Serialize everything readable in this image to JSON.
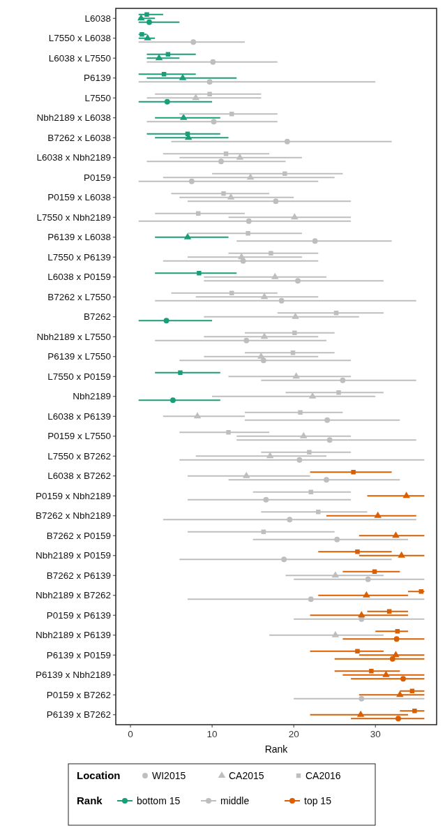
{
  "chart_data": {
    "type": "scatter",
    "orientation": "horizontal",
    "xlabel": "Rank",
    "xlim": [
      -1.8,
      37.5
    ],
    "xticks": [
      0,
      10,
      20,
      30
    ],
    "grid": false,
    "legend": "bottom",
    "legend_title": "Location",
    "annotations": [
      "Rank",
      "bottom 15",
      "middle",
      "top 15"
    ],
    "categories": [
      "L6038",
      "L7550 x L6038",
      "L6038 x L7550",
      "P6139",
      "L7550",
      "Nbh2189 x L6038",
      "B7262 x L6038",
      "L6038 x Nbh2189",
      "P0159",
      "P0159 x L6038",
      "L7550 x Nbh2189",
      "P6139 x L6038",
      "L7550 x P6139",
      "L6038 x P0159",
      "B7262 x L7550",
      "B7262",
      "Nbh2189 x L7550",
      "P6139 x L7550",
      "L7550 x P0159",
      "Nbh2189",
      "L6038 x P6139",
      "P0159 x L7550",
      "L7550 x B7262",
      "L6038 x B7262",
      "P0159 x Nbh2189",
      "B7262 x Nbh2189",
      "B7262 x P0159",
      "Nbh2189 x P0159",
      "B7262 x P6139",
      "Nbh2189 x B7262",
      "P0159 x P6139",
      "Nbh2189 x P6139",
      "P6139 x P0159",
      "P6139 x Nbh2189",
      "P0159 x B7262",
      "P6139 x B7262"
    ],
    "series": [
      {
        "name": "WI2015",
        "marker": "circle",
        "values": [
          2.3,
          7.7,
          10.1,
          9.7,
          4.5,
          10.2,
          19.2,
          11.1,
          7.5,
          17.8,
          14.5,
          22.6,
          13.8,
          20.5,
          18.5,
          4.4,
          14.2,
          16.3,
          26.0,
          5.2,
          24.1,
          24.4,
          20.7,
          24.0,
          16.6,
          19.5,
          25.3,
          18.8,
          29.1,
          22.1,
          28.3,
          32.6,
          32.1,
          33.4,
          28.3,
          32.8
        ],
        "errors": [
          [
            1,
            6
          ],
          [
            1,
            14
          ],
          [
            2,
            18
          ],
          [
            1,
            30
          ],
          [
            1,
            10
          ],
          [
            2,
            18
          ],
          [
            5,
            32
          ],
          [
            2,
            19
          ],
          [
            1,
            23
          ],
          [
            7,
            27
          ],
          [
            1,
            27
          ],
          [
            13,
            32
          ],
          [
            4,
            23
          ],
          [
            9,
            31
          ],
          [
            3,
            35
          ],
          [
            1,
            10
          ],
          [
            3,
            24
          ],
          [
            6,
            27
          ],
          [
            16,
            35
          ],
          [
            1,
            11
          ],
          [
            14,
            33
          ],
          [
            13,
            35
          ],
          [
            6,
            36
          ],
          [
            12,
            33
          ],
          [
            7,
            27
          ],
          [
            4,
            35
          ],
          [
            15,
            34
          ],
          [
            6,
            32
          ],
          [
            20,
            36
          ],
          [
            7,
            36
          ],
          [
            20,
            36
          ],
          [
            26,
            36
          ],
          [
            25,
            36
          ],
          [
            27,
            36
          ],
          [
            20,
            36
          ],
          [
            27,
            36
          ]
        ],
        "colors": [
          "#1b9e77",
          "#bebebe",
          "#bebebe",
          "#bebebe",
          "#1b9e77",
          "#bebebe",
          "#bebebe",
          "#bebebe",
          "#bebebe",
          "#bebebe",
          "#bebebe",
          "#bebebe",
          "#bebebe",
          "#bebebe",
          "#bebebe",
          "#1b9e77",
          "#bebebe",
          "#bebebe",
          "#bebebe",
          "#1b9e77",
          "#bebebe",
          "#bebebe",
          "#bebebe",
          "#bebebe",
          "#bebebe",
          "#bebebe",
          "#bebebe",
          "#bebebe",
          "#bebebe",
          "#bebebe",
          "#bebebe",
          "#d95f02",
          "#d95f02",
          "#d95f02",
          "#bebebe",
          "#d95f02"
        ]
      },
      {
        "name": "CA2015",
        "marker": "triangle",
        "values": [
          1.3,
          2.1,
          3.5,
          6.4,
          8.0,
          6.5,
          7.1,
          13.4,
          14.7,
          12.3,
          20.1,
          7.0,
          13.6,
          17.7,
          16.4,
          20.2,
          16.4,
          16.0,
          20.3,
          22.3,
          8.2,
          21.2,
          17.1,
          14.2,
          33.8,
          30.3,
          32.5,
          33.2,
          25.1,
          28.9,
          28.3,
          25.1,
          32.5,
          31.3,
          33.0,
          28.2
        ],
        "errors": [
          [
            1,
            3
          ],
          [
            1,
            3
          ],
          [
            2,
            6
          ],
          [
            2,
            13
          ],
          [
            2,
            16
          ],
          [
            3,
            11
          ],
          [
            3,
            12
          ],
          [
            6,
            21
          ],
          [
            4,
            25
          ],
          [
            6,
            20
          ],
          [
            12,
            27
          ],
          [
            3,
            12
          ],
          [
            7,
            21
          ],
          [
            9,
            24
          ],
          [
            8,
            23
          ],
          [
            9,
            28
          ],
          [
            9,
            23
          ],
          [
            9,
            23
          ],
          [
            12,
            27
          ],
          [
            10,
            30
          ],
          [
            4,
            14
          ],
          [
            13,
            27
          ],
          [
            8,
            24
          ],
          [
            7,
            22
          ],
          [
            29,
            36
          ],
          [
            24,
            35
          ],
          [
            28,
            36
          ],
          [
            28,
            36
          ],
          [
            19,
            31
          ],
          [
            23,
            34
          ],
          [
            22,
            34
          ],
          [
            17,
            31
          ],
          [
            28,
            36
          ],
          [
            26,
            36
          ],
          [
            28,
            36
          ],
          [
            22,
            34
          ]
        ],
        "colors": [
          "#1b9e77",
          "#1b9e77",
          "#1b9e77",
          "#1b9e77",
          "#bebebe",
          "#1b9e77",
          "#1b9e77",
          "#bebebe",
          "#bebebe",
          "#bebebe",
          "#bebebe",
          "#1b9e77",
          "#bebebe",
          "#bebebe",
          "#bebebe",
          "#bebebe",
          "#bebebe",
          "#bebebe",
          "#bebebe",
          "#bebebe",
          "#bebebe",
          "#bebebe",
          "#bebebe",
          "#bebebe",
          "#d95f02",
          "#d95f02",
          "#d95f02",
          "#d95f02",
          "#bebebe",
          "#d95f02",
          "#d95f02",
          "#bebebe",
          "#d95f02",
          "#d95f02",
          "#d95f02",
          "#d95f02"
        ]
      },
      {
        "name": "CA2016",
        "marker": "square",
        "values": [
          2.0,
          1.4,
          4.6,
          4.1,
          9.7,
          12.4,
          7.0,
          11.7,
          18.9,
          11.4,
          8.3,
          14.4,
          17.2,
          8.4,
          12.4,
          25.2,
          20.1,
          19.9,
          6.1,
          25.5,
          20.8,
          12.0,
          21.9,
          27.3,
          22.1,
          23.0,
          16.3,
          27.8,
          29.9,
          35.6,
          31.7,
          32.7,
          27.8,
          29.5,
          34.5,
          34.8
        ],
        "errors": [
          [
            1,
            4
          ],
          [
            1,
            2
          ],
          [
            2,
            8
          ],
          [
            1,
            8
          ],
          [
            3,
            16
          ],
          [
            6,
            18
          ],
          [
            2,
            11
          ],
          [
            4,
            17
          ],
          [
            10,
            26
          ],
          [
            5,
            17
          ],
          [
            3,
            14
          ],
          [
            7,
            21
          ],
          [
            12,
            23
          ],
          [
            3,
            13
          ],
          [
            5,
            18
          ],
          [
            18,
            31
          ],
          [
            14,
            25
          ],
          [
            14,
            25
          ],
          [
            3,
            11
          ],
          [
            19,
            31
          ],
          [
            14,
            26
          ],
          [
            6,
            17
          ],
          [
            16,
            27
          ],
          [
            22,
            32
          ],
          [
            15,
            27
          ],
          [
            16,
            29
          ],
          [
            7,
            25
          ],
          [
            23,
            32
          ],
          [
            26,
            33
          ],
          [
            34,
            36
          ],
          [
            29,
            34
          ],
          [
            30,
            34
          ],
          [
            22,
            31
          ],
          [
            25,
            33
          ],
          [
            33,
            36
          ],
          [
            33,
            36
          ]
        ],
        "colors": [
          "#1b9e77",
          "#1b9e77",
          "#1b9e77",
          "#1b9e77",
          "#bebebe",
          "#bebebe",
          "#1b9e77",
          "#bebebe",
          "#bebebe",
          "#bebebe",
          "#bebebe",
          "#bebebe",
          "#bebebe",
          "#1b9e77",
          "#bebebe",
          "#bebebe",
          "#bebebe",
          "#bebebe",
          "#1b9e77",
          "#bebebe",
          "#bebebe",
          "#bebebe",
          "#bebebe",
          "#d95f02",
          "#bebebe",
          "#bebebe",
          "#bebebe",
          "#d95f02",
          "#d95f02",
          "#d95f02",
          "#d95f02",
          "#d95f02",
          "#d95f02",
          "#d95f02",
          "#d95f02",
          "#d95f02"
        ]
      }
    ]
  }
}
